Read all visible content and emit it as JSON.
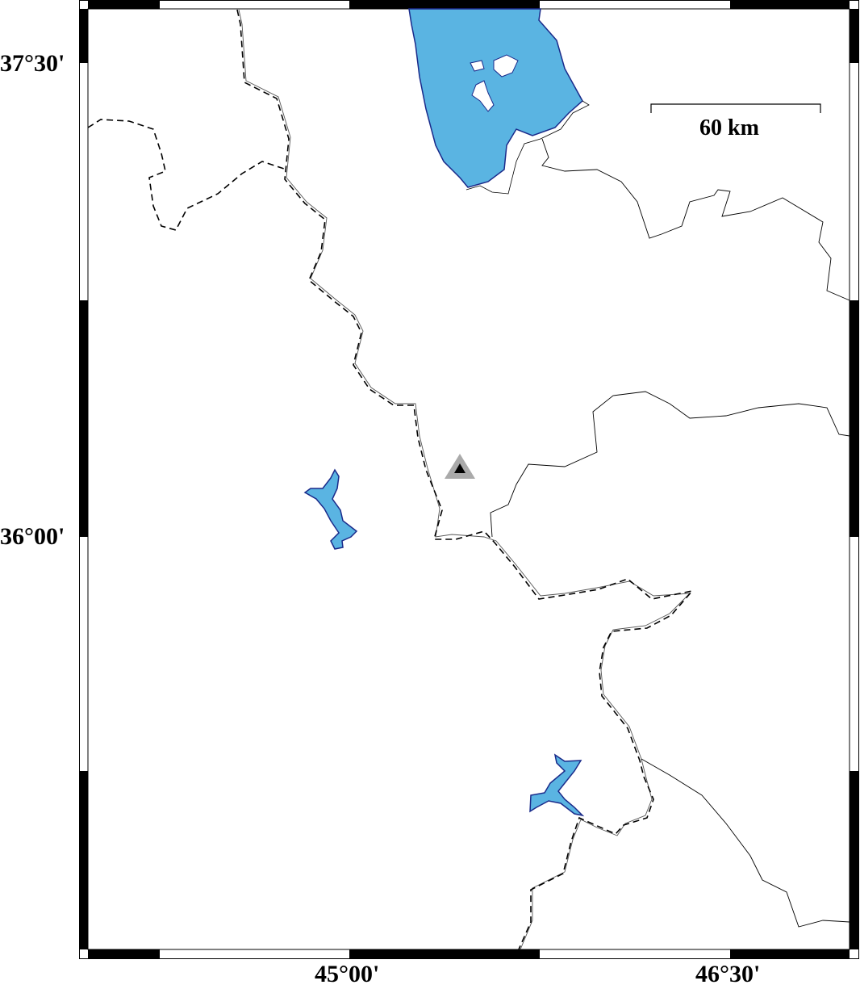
{
  "map": {
    "lat_labels": [
      "37°30'",
      "36°00'"
    ],
    "lon_labels": [
      "45°00'",
      "46°30'"
    ],
    "scale_bar": {
      "label": "60 km"
    },
    "marker": {
      "icon": "station-triangle-icon",
      "outer_color": "#aaaaaa",
      "inner_color": "#000000"
    },
    "colors": {
      "water": "#5ab4e2",
      "lake_outline": "#1a2a8a",
      "frame_dark": "#000000"
    }
  }
}
